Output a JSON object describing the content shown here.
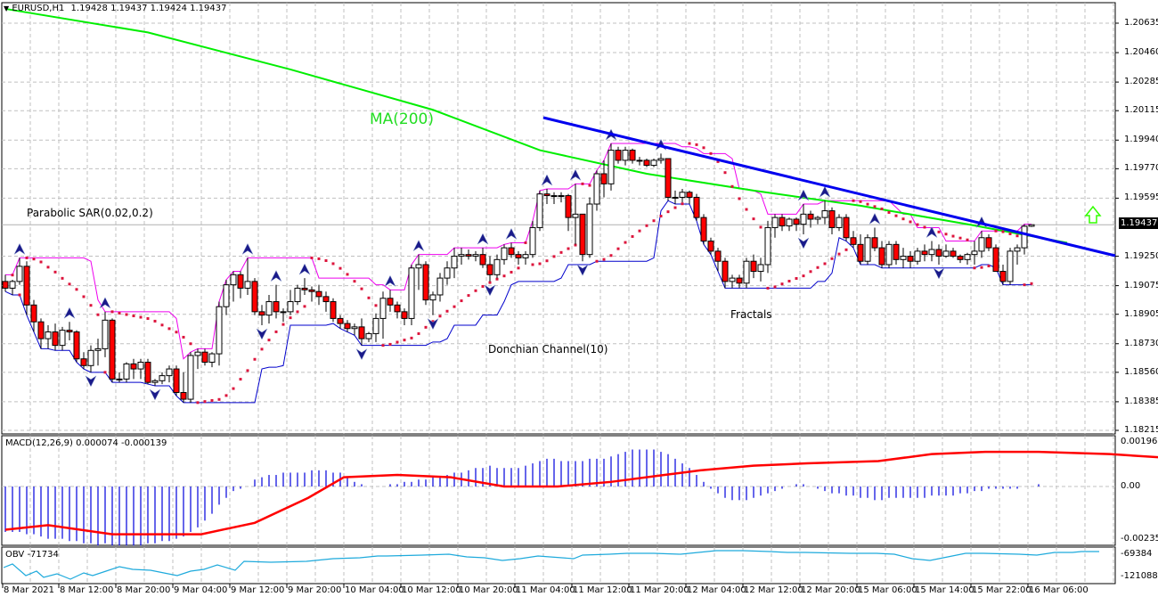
{
  "window": {
    "symbol_header": "EURUSD,H1",
    "ohlc": "1.19428 1.19437 1.19424 1.19437",
    "dropdown_icon": "triangle-down-icon"
  },
  "annotations": {
    "ma_label": "MA(200)",
    "sar_label": "Parabolic SAR(0.02,0.2)",
    "donchian_label": "Donchian Channel(10)",
    "fractals_label": "Fractals",
    "signal_icon": "up-arrow-icon"
  },
  "colors": {
    "bull_candle": "#ffffff",
    "bear_candle": "#ff0000",
    "candle_outline": "#000000",
    "ma": "#00ee00",
    "donchian_upper": "#ee00ee",
    "donchian_lower": "#0000cc",
    "sar": "#dc143c",
    "trendline": "#0000ee",
    "fractal": "#1a1a8a",
    "macd_hist": "#0000dd",
    "macd_signal": "#ff0000",
    "obv": "#1eaadc",
    "grid": "#c0c0c0",
    "up_arrow": "#33ff00"
  },
  "price_axis": {
    "ticks": [
      "1.20635",
      "1.20460",
      "1.20285",
      "1.20115",
      "1.19940",
      "1.19770",
      "1.19595",
      "1.19250",
      "1.19075",
      "1.18905",
      "1.18730",
      "1.18560",
      "1.18385",
      "1.18215"
    ],
    "current_price": "1.19437"
  },
  "macd": {
    "label": "MACD(12,26,9) 0.000074 -0.000139",
    "ticks": [
      "0.001966",
      "0.00",
      "-0.002352"
    ]
  },
  "obv": {
    "label": "OBV -71734",
    "ticks": [
      "-69384",
      "-121088"
    ]
  },
  "time_axis": {
    "labels": [
      "8 Mar 2021",
      "8 Mar 12:00",
      "8 Mar 20:00",
      "9 Mar 04:00",
      "9 Mar 12:00",
      "9 Mar 20:00",
      "10 Mar 04:00",
      "10 Mar 12:00",
      "10 Mar 20:00",
      "11 Mar 04:00",
      "11 Mar 12:00",
      "11 Mar 20:00",
      "12 Mar 04:00",
      "12 Mar 12:00",
      "12 Mar 20:00",
      "15 Mar 06:00",
      "15 Mar 14:00",
      "15 Mar 22:00",
      "16 Mar 06:00"
    ]
  },
  "chart_data": {
    "type": "candlestick",
    "title": "EURUSD,H1",
    "symbol": "EURUSD",
    "timeframe": "H1",
    "last_ohlc": {
      "open": 1.19428,
      "high": 1.19437,
      "low": 1.19424,
      "close": 1.19437
    },
    "ylim": [
      1.18215,
      1.2072
    ],
    "x_labels": [
      "8 Mar 2021",
      "8 Mar 12:00",
      "8 Mar 20:00",
      "9 Mar 04:00",
      "9 Mar 12:00",
      "9 Mar 20:00",
      "10 Mar 04:00",
      "10 Mar 12:00",
      "10 Mar 20:00",
      "11 Mar 04:00",
      "11 Mar 12:00",
      "11 Mar 20:00",
      "12 Mar 04:00",
      "12 Mar 12:00",
      "12 Mar 20:00",
      "15 Mar 06:00",
      "15 Mar 14:00",
      "15 Mar 22:00",
      "16 Mar 06:00"
    ],
    "grid": true,
    "candles": [
      [
        1.191,
        1.1914,
        1.1904,
        1.1906
      ],
      [
        1.1906,
        1.1911,
        1.1902,
        1.191
      ],
      [
        1.191,
        1.1924,
        1.1908,
        1.1919
      ],
      [
        1.1919,
        1.1922,
        1.189,
        1.1896
      ],
      [
        1.1896,
        1.1899,
        1.188,
        1.1886
      ],
      [
        1.1886,
        1.1888,
        1.187,
        1.1876
      ],
      [
        1.1876,
        1.1884,
        1.187,
        1.188
      ],
      [
        1.188,
        1.1885,
        1.1869,
        1.1872
      ],
      [
        1.1872,
        1.1883,
        1.1869,
        1.1881
      ],
      [
        1.1881,
        1.1886,
        1.1875,
        1.188
      ],
      [
        1.188,
        1.1881,
        1.1862,
        1.1864
      ],
      [
        1.1864,
        1.1868,
        1.1858,
        1.186
      ],
      [
        1.186,
        1.1872,
        1.1856,
        1.1869
      ],
      [
        1.1869,
        1.1876,
        1.186,
        1.187
      ],
      [
        1.187,
        1.1892,
        1.1865,
        1.1887
      ],
      [
        1.1887,
        1.1888,
        1.185,
        1.1852
      ],
      [
        1.1852,
        1.1856,
        1.185,
        1.1852
      ],
      [
        1.1852,
        1.1862,
        1.185,
        1.1861
      ],
      [
        1.1861,
        1.1864,
        1.1852,
        1.1858
      ],
      [
        1.1858,
        1.1864,
        1.1852,
        1.1862
      ],
      [
        1.1862,
        1.1864,
        1.1849,
        1.185
      ],
      [
        1.185,
        1.1852,
        1.1848,
        1.1851
      ],
      [
        1.1851,
        1.1856,
        1.1849,
        1.1854
      ],
      [
        1.1854,
        1.186,
        1.185,
        1.1858
      ],
      [
        1.1858,
        1.186,
        1.1842,
        1.1844
      ],
      [
        1.1844,
        1.1856,
        1.1838,
        1.184
      ],
      [
        1.184,
        1.1868,
        1.1838,
        1.1866
      ],
      [
        1.1866,
        1.187,
        1.1858,
        1.1868
      ],
      [
        1.1868,
        1.187,
        1.186,
        1.1862
      ],
      [
        1.1862,
        1.1868,
        1.1859,
        1.1867
      ],
      [
        1.1867,
        1.1898,
        1.186,
        1.1895
      ],
      [
        1.1895,
        1.1911,
        1.189,
        1.1908
      ],
      [
        1.1908,
        1.1916,
        1.1898,
        1.1914
      ],
      [
        1.1914,
        1.1916,
        1.19,
        1.1906
      ],
      [
        1.1906,
        1.1924,
        1.1902,
        1.191
      ],
      [
        1.191,
        1.1912,
        1.189,
        1.1892
      ],
      [
        1.1892,
        1.1896,
        1.1884,
        1.189
      ],
      [
        1.189,
        1.1902,
        1.1885,
        1.1898
      ],
      [
        1.1898,
        1.1908,
        1.1888,
        1.1892
      ],
      [
        1.1892,
        1.1894,
        1.1886,
        1.1892
      ],
      [
        1.1892,
        1.1905,
        1.189,
        1.1898
      ],
      [
        1.1898,
        1.1908,
        1.1896,
        1.1906
      ],
      [
        1.1906,
        1.1912,
        1.1902,
        1.1905
      ],
      [
        1.1905,
        1.1907,
        1.1898,
        1.1904
      ],
      [
        1.1904,
        1.1908,
        1.1896,
        1.1901
      ],
      [
        1.1901,
        1.1904,
        1.1892,
        1.1898
      ],
      [
        1.1898,
        1.19,
        1.1886,
        1.1888
      ],
      [
        1.1888,
        1.189,
        1.1882,
        1.1885
      ],
      [
        1.1885,
        1.1887,
        1.188,
        1.1882
      ],
      [
        1.1882,
        1.1885,
        1.1878,
        1.1883
      ],
      [
        1.1883,
        1.1888,
        1.1872,
        1.1876
      ],
      [
        1.1876,
        1.188,
        1.1874,
        1.1879
      ],
      [
        1.1879,
        1.1891,
        1.1874,
        1.1888
      ],
      [
        1.1888,
        1.1904,
        1.1876,
        1.19
      ],
      [
        1.19,
        1.1905,
        1.1892,
        1.1896
      ],
      [
        1.1896,
        1.1898,
        1.1888,
        1.1892
      ],
      [
        1.1892,
        1.1894,
        1.1884,
        1.1888
      ],
      [
        1.1888,
        1.192,
        1.1884,
        1.1918
      ],
      [
        1.1918,
        1.1926,
        1.1905,
        1.192
      ],
      [
        1.192,
        1.1922,
        1.1896,
        1.1899
      ],
      [
        1.1899,
        1.1904,
        1.189,
        1.1902
      ],
      [
        1.1902,
        1.1915,
        1.1898,
        1.1912
      ],
      [
        1.1912,
        1.1922,
        1.1908,
        1.1918
      ],
      [
        1.1918,
        1.193,
        1.1912,
        1.1925
      ],
      [
        1.1925,
        1.193,
        1.192,
        1.1926
      ],
      [
        1.1926,
        1.1929,
        1.1923,
        1.1925
      ],
      [
        1.1925,
        1.1928,
        1.1922,
        1.1926
      ],
      [
        1.1926,
        1.193,
        1.1918,
        1.192
      ],
      [
        1.192,
        1.1925,
        1.191,
        1.1914
      ],
      [
        1.1914,
        1.1926,
        1.1912,
        1.1923
      ],
      [
        1.1923,
        1.1932,
        1.192,
        1.193
      ],
      [
        1.193,
        1.1933,
        1.1924,
        1.1926
      ],
      [
        1.1926,
        1.1928,
        1.192,
        1.1924
      ],
      [
        1.1924,
        1.1928,
        1.192,
        1.1926
      ],
      [
        1.1926,
        1.1946,
        1.1924,
        1.1942
      ],
      [
        1.1942,
        1.1964,
        1.194,
        1.1962
      ],
      [
        1.1962,
        1.1965,
        1.1956,
        1.1961
      ],
      [
        1.1961,
        1.1963,
        1.1956,
        1.1961
      ],
      [
        1.1961,
        1.1963,
        1.1957,
        1.1961
      ],
      [
        1.1961,
        1.1962,
        1.194,
        1.1948
      ],
      [
        1.1948,
        1.1968,
        1.1932,
        1.195
      ],
      [
        1.195,
        1.195,
        1.1922,
        1.1926
      ],
      [
        1.1926,
        1.196,
        1.1924,
        1.1956
      ],
      [
        1.1956,
        1.1976,
        1.1952,
        1.1974
      ],
      [
        1.1974,
        1.1982,
        1.196,
        1.1968
      ],
      [
        1.1968,
        1.1992,
        1.1964,
        1.1988
      ],
      [
        1.1988,
        1.199,
        1.198,
        1.1982
      ],
      [
        1.1982,
        1.199,
        1.1979,
        1.1988
      ],
      [
        1.1988,
        1.1989,
        1.198,
        1.1982
      ],
      [
        1.1982,
        1.1984,
        1.1979,
        1.1982
      ],
      [
        1.1982,
        1.1983,
        1.1978,
        1.1979
      ],
      [
        1.1979,
        1.1983,
        1.1978,
        1.1982
      ],
      [
        1.1982,
        1.1986,
        1.198,
        1.1983
      ],
      [
        1.1983,
        1.1983,
        1.1958,
        1.196
      ],
      [
        1.196,
        1.1964,
        1.1956,
        1.196
      ],
      [
        1.196,
        1.1965,
        1.1957,
        1.1963
      ],
      [
        1.1963,
        1.1964,
        1.1956,
        1.196
      ],
      [
        1.196,
        1.1962,
        1.1946,
        1.1948
      ],
      [
        1.1948,
        1.195,
        1.1932,
        1.1934
      ],
      [
        1.1934,
        1.1936,
        1.1926,
        1.1928
      ],
      [
        1.1928,
        1.193,
        1.1916,
        1.1922
      ],
      [
        1.1922,
        1.1924,
        1.1906,
        1.191
      ],
      [
        1.191,
        1.1914,
        1.1906,
        1.1912
      ],
      [
        1.1912,
        1.1914,
        1.1906,
        1.1909
      ],
      [
        1.1909,
        1.1924,
        1.1906,
        1.1922
      ],
      [
        1.1922,
        1.1926,
        1.1912,
        1.1916
      ],
      [
        1.1916,
        1.1924,
        1.191,
        1.192
      ],
      [
        1.192,
        1.1946,
        1.1915,
        1.1942
      ],
      [
        1.1942,
        1.195,
        1.1936,
        1.1948
      ],
      [
        1.1948,
        1.195,
        1.194,
        1.1943
      ],
      [
        1.1943,
        1.1948,
        1.194,
        1.1947
      ],
      [
        1.1947,
        1.1948,
        1.194,
        1.1944
      ],
      [
        1.1944,
        1.1956,
        1.1938,
        1.195
      ],
      [
        1.195,
        1.1952,
        1.1942,
        1.1947
      ],
      [
        1.1947,
        1.1949,
        1.1944,
        1.1948
      ],
      [
        1.1948,
        1.1958,
        1.1944,
        1.1952
      ],
      [
        1.1952,
        1.1954,
        1.1938,
        1.1942
      ],
      [
        1.1942,
        1.195,
        1.194,
        1.1948
      ],
      [
        1.1948,
        1.195,
        1.1934,
        1.1936
      ],
      [
        1.1936,
        1.194,
        1.193,
        1.1932
      ],
      [
        1.1932,
        1.1938,
        1.192,
        1.1922
      ],
      [
        1.1922,
        1.1938,
        1.192,
        1.1936
      ],
      [
        1.1936,
        1.1942,
        1.1928,
        1.193
      ],
      [
        1.193,
        1.1934,
        1.1918,
        1.192
      ],
      [
        1.192,
        1.1934,
        1.1918,
        1.1932
      ],
      [
        1.1932,
        1.1934,
        1.192,
        1.1923
      ],
      [
        1.1923,
        1.193,
        1.1918,
        1.1925
      ],
      [
        1.1925,
        1.1928,
        1.1918,
        1.1922
      ],
      [
        1.1922,
        1.193,
        1.192,
        1.1928
      ],
      [
        1.1928,
        1.1932,
        1.1922,
        1.1926
      ],
      [
        1.1926,
        1.1934,
        1.1922,
        1.1929
      ],
      [
        1.1929,
        1.1932,
        1.192,
        1.1925
      ],
      [
        1.1925,
        1.1932,
        1.1924,
        1.1928
      ],
      [
        1.1928,
        1.193,
        1.1924,
        1.1925
      ],
      [
        1.1925,
        1.1926,
        1.1921,
        1.1923
      ],
      [
        1.1923,
        1.1927,
        1.192,
        1.1926
      ],
      [
        1.1926,
        1.1934,
        1.192,
        1.1928
      ],
      [
        1.1928,
        1.194,
        1.1924,
        1.1936
      ],
      [
        1.1936,
        1.1938,
        1.1928,
        1.193
      ],
      [
        1.193,
        1.1932,
        1.1918,
        1.1916
      ],
      [
        1.1916,
        1.192,
        1.1908,
        1.191
      ],
      [
        1.191,
        1.193,
        1.1908,
        1.1928
      ],
      [
        1.1928,
        1.1932,
        1.192,
        1.193
      ],
      [
        1.193,
        1.1944,
        1.1926,
        1.19428
      ],
      [
        1.19428,
        1.19437,
        1.19424,
        1.19437
      ]
    ],
    "ma200": {
      "name": "MA(200)",
      "start": 1.2072,
      "points": [
        [
          0,
          1.2072
        ],
        [
          20,
          1.2058
        ],
        [
          40,
          1.2036
        ],
        [
          60,
          1.2012
        ],
        [
          75,
          1.1988
        ],
        [
          90,
          1.1974
        ],
        [
          105,
          1.1964
        ],
        [
          120,
          1.1955
        ],
        [
          135,
          1.1944
        ],
        [
          149,
          1.1933
        ]
      ]
    },
    "trendline": {
      "from": [
        76,
        1.2004
      ],
      "to": [
        155,
        1.1922
      ]
    },
    "macd": {
      "ylim": [
        -0.002352,
        0.001966
      ],
      "hist": [
        -0.002,
        -0.002,
        -0.002,
        -0.0021,
        -0.0021,
        -0.0022,
        -0.0023,
        -0.0023,
        -0.0023,
        -0.0024,
        -0.0024,
        -0.0025,
        -0.0025,
        -0.0026,
        -0.0025,
        -0.0026,
        -0.0026,
        -0.0026,
        -0.0026,
        -0.0026,
        -0.0025,
        -0.0025,
        -0.0024,
        -0.0024,
        -0.0023,
        -0.0022,
        -0.002,
        -0.0018,
        -0.0015,
        -0.0012,
        -0.0008,
        -0.0005,
        -0.0002,
        -0.0001,
        0.0,
        0.0003,
        0.0004,
        0.0005,
        0.0005,
        0.0006,
        0.0006,
        0.0006,
        0.0006,
        0.0007,
        0.0007,
        0.0007,
        0.0006,
        0.0006,
        0.0004,
        0.0002,
        0.0001,
        0.0,
        0.0,
        0.0,
        0.0001,
        0.0001,
        0.0002,
        0.0002,
        0.0003,
        0.0003,
        0.0004,
        0.0004,
        0.0005,
        0.0006,
        0.0006,
        0.0007,
        0.0008,
        0.0008,
        0.0009,
        0.0008,
        0.0008,
        0.0008,
        0.0008,
        0.0009,
        0.001,
        0.0011,
        0.0012,
        0.0012,
        0.0011,
        0.0011,
        0.0011,
        0.0011,
        0.0012,
        0.0012,
        0.0012,
        0.0013,
        0.0014,
        0.0015,
        0.0016,
        0.0016,
        0.0016,
        0.0016,
        0.0015,
        0.0014,
        0.0012,
        0.001,
        0.0008,
        0.0005,
        0.0002,
        -0.0001,
        -0.0003,
        -0.0005,
        -0.0006,
        -0.0006,
        -0.0006,
        -0.0005,
        -0.0004,
        -0.0003,
        -0.0002,
        -0.0001,
        0.0,
        0.0001,
        0.0001,
        0.0,
        -0.0001,
        -0.0002,
        -0.0003,
        -0.0003,
        -0.0004,
        -0.0004,
        -0.0005,
        -0.0005,
        -0.0006,
        -0.0006,
        -0.0005,
        -0.0005,
        -0.0005,
        -0.0005,
        -0.0005,
        -0.0005,
        -0.0004,
        -0.0004,
        -0.0004,
        -0.0004,
        -0.0003,
        -0.0003,
        -0.0002,
        -0.0002,
        -0.0001,
        -0.0001,
        -0.0001,
        -0.0001,
        -0.0001,
        0.0,
        0.0,
        0.0001
      ],
      "signal_points": [
        [
          0,
          -0.0019
        ],
        [
          12,
          -0.0017
        ],
        [
          30,
          -0.0021
        ],
        [
          55,
          -0.0021
        ],
        [
          70,
          -0.0016
        ],
        [
          85,
          -0.0005
        ],
        [
          95,
          0.0004
        ],
        [
          110,
          0.0005
        ],
        [
          125,
          0.0004
        ],
        [
          140,
          0.0
        ],
        [
          155,
          0.0
        ],
        [
          170,
          0.0002
        ],
        [
          185,
          0.0005
        ],
        [
          195,
          0.0007
        ],
        [
          210,
          0.0009
        ],
        [
          225,
          0.001
        ],
        [
          245,
          0.0011
        ],
        [
          260,
          0.0014
        ],
        [
          275,
          0.0015
        ],
        [
          290,
          0.0015
        ],
        [
          310,
          0.0014
        ],
        [
          330,
          0.0012
        ]
      ]
    },
    "obv": {
      "ylim": [
        -121088,
        -60000
      ]
    }
  }
}
